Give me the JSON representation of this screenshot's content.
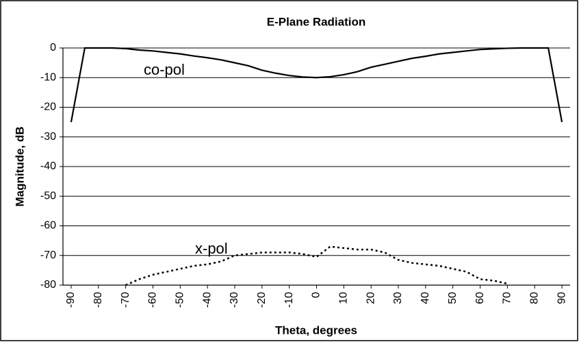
{
  "chart_data": {
    "type": "line",
    "title": "E-Plane Radiation",
    "x_label": "Theta, degrees",
    "y_label": "Magnitude, dB",
    "x": [
      -90,
      -85,
      -80,
      -75,
      -70,
      -65,
      -60,
      -55,
      -50,
      -45,
      -40,
      -35,
      -30,
      -25,
      -20,
      -15,
      -10,
      -5,
      0,
      5,
      10,
      15,
      20,
      25,
      30,
      35,
      40,
      45,
      50,
      55,
      60,
      65,
      70,
      75,
      80,
      85,
      90
    ],
    "series": [
      {
        "name": "co-pol",
        "color": "#000000",
        "dash": "solid",
        "values": [
          -25,
          0,
          0,
          0,
          -0.2,
          -0.7,
          -1,
          -1.5,
          -2,
          -2.7,
          -3.3,
          -4,
          -5,
          -6,
          -7.5,
          -8.5,
          -9.3,
          -9.8,
          -10,
          -9.7,
          -9,
          -8,
          -6.5,
          -5.5,
          -4.5,
          -3.5,
          -2.8,
          -2,
          -1.5,
          -1,
          -0.5,
          -0.3,
          -0.1,
          0,
          0,
          0,
          -25
        ]
      },
      {
        "name": "x-pol",
        "color": "#000000",
        "dash": "dotted",
        "values": [
          null,
          null,
          null,
          null,
          -80,
          -78,
          -76.5,
          -75.5,
          -74.5,
          -73.5,
          -73,
          -72,
          -70,
          -69.5,
          -69,
          -69,
          -69,
          -69.5,
          -70.5,
          -67,
          -67.5,
          -68,
          -68,
          -69,
          -71.5,
          -72.5,
          -73,
          -73.5,
          -74.5,
          -75.5,
          -78,
          -78.5,
          -79.5,
          null,
          null,
          null,
          null
        ]
      }
    ],
    "xlim": [
      -93,
      93
    ],
    "xticks": [
      -90,
      -80,
      -70,
      -60,
      -50,
      -40,
      -30,
      -20,
      -10,
      0,
      10,
      20,
      30,
      40,
      50,
      60,
      70,
      80,
      90
    ],
    "ylim": [
      -80,
      0
    ],
    "yticks": [
      0,
      -10,
      -20,
      -30,
      -40,
      -50,
      -60,
      -70,
      -80
    ],
    "grid": true
  }
}
